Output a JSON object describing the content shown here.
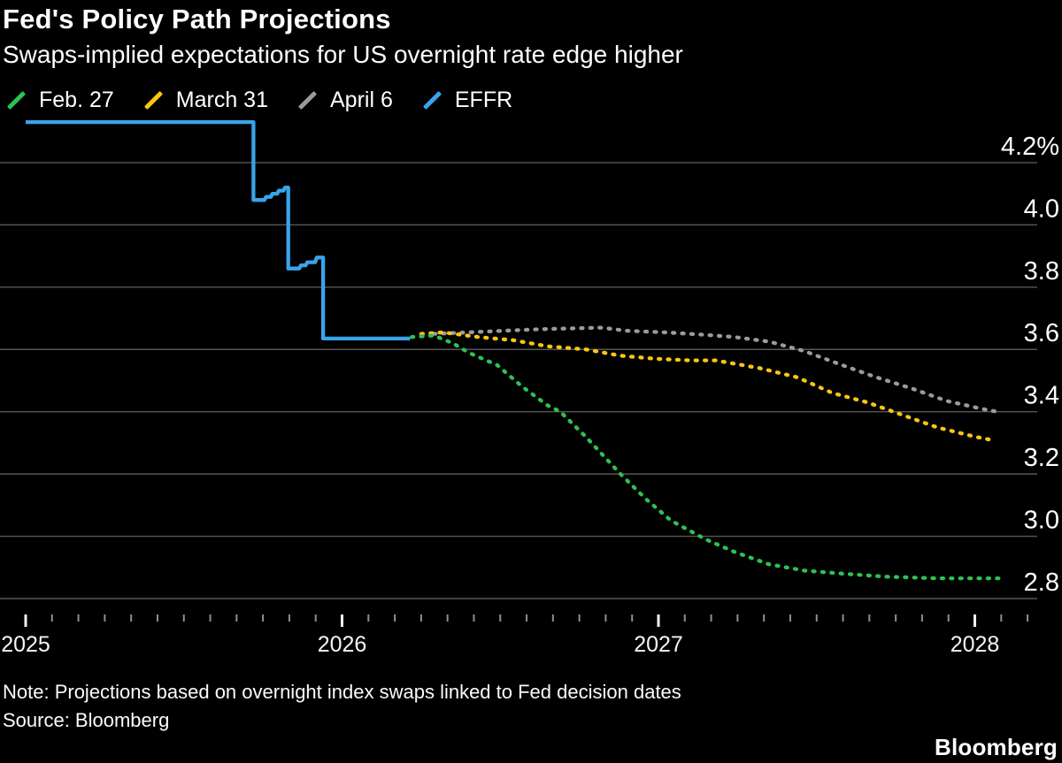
{
  "header": {
    "title": "Fed's Policy Path Projections",
    "subtitle": "Swaps-implied expectations for US overnight rate edge higher"
  },
  "legend": {
    "items": [
      {
        "label": "Feb. 27"
      },
      {
        "label": "March 31"
      },
      {
        "label": "April 6"
      },
      {
        "label": "EFFR"
      }
    ]
  },
  "footer": {
    "note": "Note: Projections based on overnight index swaps linked to Fed decision dates",
    "source": "Source: Bloomberg",
    "brand": "Bloomberg"
  },
  "chart_data": {
    "type": "line",
    "title": "Fed's Policy Path Projections",
    "subtitle": "Swaps-implied expectations for US overnight rate edge higher",
    "grid": "horizontal",
    "legend_position": "top-left",
    "background_color": "#000000",
    "gridline_color": "#575757",
    "x_axis": {
      "label": "",
      "unit": "year",
      "range_years": [
        2025.0,
        2028.2
      ],
      "minor_tick_unit": "month",
      "ticks": [
        {
          "value": 2025,
          "label": "2025"
        },
        {
          "value": 2026,
          "label": "2026"
        },
        {
          "value": 2027,
          "label": "2027"
        },
        {
          "value": 2028,
          "label": "2028"
        }
      ]
    },
    "y_axis": {
      "label": "",
      "unit": "percent",
      "range": [
        2.72,
        4.38
      ],
      "ticks": [
        {
          "value": 4.2,
          "label": "4.2%"
        },
        {
          "value": 4.0,
          "label": "4.0"
        },
        {
          "value": 3.8,
          "label": "3.8"
        },
        {
          "value": 3.6,
          "label": "3.6"
        },
        {
          "value": 3.4,
          "label": "3.4"
        },
        {
          "value": 3.2,
          "label": "3.2"
        },
        {
          "value": 3.0,
          "label": "3.0"
        },
        {
          "value": 2.8,
          "label": "2.8"
        }
      ]
    },
    "series": [
      {
        "name": "Feb. 27",
        "color": "#2ec152",
        "style": "dotted",
        "points": [
          [
            2026.22,
            3.64
          ],
          [
            2026.29,
            3.645
          ],
          [
            2026.35,
            3.62
          ],
          [
            2026.4,
            3.59
          ],
          [
            2026.49,
            3.55
          ],
          [
            2026.57,
            3.48
          ],
          [
            2026.65,
            3.42
          ],
          [
            2026.69,
            3.4
          ],
          [
            2026.77,
            3.32
          ],
          [
            2026.88,
            3.2
          ],
          [
            2026.96,
            3.12
          ],
          [
            2027.04,
            3.05
          ],
          [
            2027.15,
            2.99
          ],
          [
            2027.24,
            2.95
          ],
          [
            2027.35,
            2.91
          ],
          [
            2027.46,
            2.89
          ],
          [
            2027.58,
            2.88
          ],
          [
            2027.72,
            2.87
          ],
          [
            2027.88,
            2.865
          ],
          [
            2028.09,
            2.865
          ]
        ]
      },
      {
        "name": "March 31",
        "color": "#f9c613",
        "style": "dotted",
        "points": [
          [
            2026.25,
            3.65
          ],
          [
            2026.32,
            3.655
          ],
          [
            2026.43,
            3.64
          ],
          [
            2026.54,
            3.63
          ],
          [
            2026.65,
            3.61
          ],
          [
            2026.77,
            3.6
          ],
          [
            2026.88,
            3.58
          ],
          [
            2026.99,
            3.57
          ],
          [
            2027.1,
            3.565
          ],
          [
            2027.18,
            3.565
          ],
          [
            2027.32,
            3.54
          ],
          [
            2027.44,
            3.51
          ],
          [
            2027.55,
            3.46
          ],
          [
            2027.66,
            3.43
          ],
          [
            2027.77,
            3.39
          ],
          [
            2027.88,
            3.35
          ],
          [
            2028.0,
            3.32
          ],
          [
            2028.05,
            3.31
          ]
        ]
      },
      {
        "name": "April 6",
        "color": "#9b9b9b",
        "style": "dotted",
        "points": [
          [
            2026.29,
            3.65
          ],
          [
            2026.4,
            3.655
          ],
          [
            2026.51,
            3.66
          ],
          [
            2026.63,
            3.665
          ],
          [
            2026.74,
            3.668
          ],
          [
            2026.82,
            3.67
          ],
          [
            2026.9,
            3.66
          ],
          [
            2027.02,
            3.655
          ],
          [
            2027.13,
            3.648
          ],
          [
            2027.24,
            3.64
          ],
          [
            2027.35,
            3.625
          ],
          [
            2027.46,
            3.595
          ],
          [
            2027.58,
            3.55
          ],
          [
            2027.69,
            3.51
          ],
          [
            2027.8,
            3.475
          ],
          [
            2027.91,
            3.435
          ],
          [
            2028.02,
            3.41
          ],
          [
            2028.07,
            3.4
          ]
        ]
      },
      {
        "name": "EFFR",
        "color": "#3aa3ea",
        "style": "solid",
        "points": [
          [
            2025.0,
            4.33
          ],
          [
            2025.72,
            4.33
          ],
          [
            2025.72,
            4.08
          ],
          [
            2025.755,
            4.08
          ],
          [
            2025.76,
            4.09
          ],
          [
            2025.775,
            4.09
          ],
          [
            2025.78,
            4.1
          ],
          [
            2025.795,
            4.1
          ],
          [
            2025.8,
            4.11
          ],
          [
            2025.815,
            4.11
          ],
          [
            2025.82,
            4.12
          ],
          [
            2025.83,
            4.12
          ],
          [
            2025.83,
            3.86
          ],
          [
            2025.865,
            3.86
          ],
          [
            2025.87,
            3.87
          ],
          [
            2025.885,
            3.87
          ],
          [
            2025.89,
            3.88
          ],
          [
            2025.915,
            3.88
          ],
          [
            2025.92,
            3.895
          ],
          [
            2025.94,
            3.895
          ],
          [
            2025.94,
            3.635
          ],
          [
            2026.215,
            3.635
          ]
        ]
      }
    ]
  }
}
